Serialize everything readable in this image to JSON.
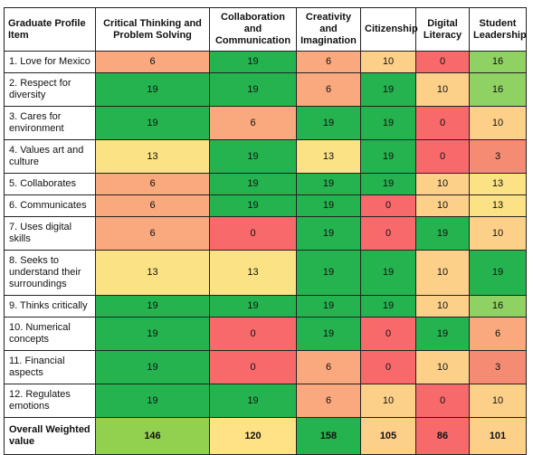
{
  "table": {
    "header": [
      "Graduate Profile Item",
      "Critical Thinking and Problem Solving",
      "Collaboration and Communication",
      "Creativity and Imagination",
      "Citizenship",
      "Digital Literacy",
      "Student Leadership"
    ],
    "rows": [
      {
        "item": "1. Love for Mexico",
        "values": [
          "6",
          "19",
          "6",
          "10",
          "0",
          "16"
        ],
        "colors": [
          "#f9a97d",
          "#25b34f",
          "#f9a97d",
          "#fdd08a",
          "#f8696b",
          "#8fd163"
        ]
      },
      {
        "item": "2. Respect for diversity",
        "values": [
          "19",
          "19",
          "6",
          "19",
          "10",
          "16"
        ],
        "colors": [
          "#25b34f",
          "#25b34f",
          "#f9a97d",
          "#25b34f",
          "#fdd08a",
          "#8fd163"
        ]
      },
      {
        "item": "3. Cares for environment",
        "values": [
          "19",
          "6",
          "19",
          "19",
          "0",
          "10"
        ],
        "colors": [
          "#25b34f",
          "#f9a97d",
          "#25b34f",
          "#25b34f",
          "#f8696b",
          "#fdd08a"
        ]
      },
      {
        "item": "4. Values art and culture",
        "values": [
          "13",
          "19",
          "13",
          "19",
          "0",
          "3"
        ],
        "colors": [
          "#fbe284",
          "#25b34f",
          "#fbe284",
          "#25b34f",
          "#f8696b",
          "#f58b73"
        ]
      },
      {
        "item": "5. Collaborates",
        "values": [
          "6",
          "19",
          "19",
          "19",
          "10",
          "13"
        ],
        "colors": [
          "#f9a97d",
          "#25b34f",
          "#25b34f",
          "#25b34f",
          "#fdd08a",
          "#fbe284"
        ]
      },
      {
        "item": "6. Communicates",
        "values": [
          "6",
          "19",
          "19",
          "0",
          "10",
          "13"
        ],
        "colors": [
          "#f9a97d",
          "#25b34f",
          "#25b34f",
          "#f8696b",
          "#fdd08a",
          "#fbe284"
        ]
      },
      {
        "item": "7. Uses digital skills",
        "values": [
          "6",
          "0",
          "19",
          "0",
          "19",
          "10"
        ],
        "colors": [
          "#f9a97d",
          "#f8696b",
          "#25b34f",
          "#f8696b",
          "#25b34f",
          "#fdd08a"
        ]
      },
      {
        "item": "8. Seeks to understand their surroundings",
        "values": [
          "13",
          "13",
          "19",
          "19",
          "10",
          "19"
        ],
        "colors": [
          "#fbe284",
          "#fbe284",
          "#25b34f",
          "#25b34f",
          "#fdd08a",
          "#25b34f"
        ]
      },
      {
        "item": "9. Thinks critically",
        "values": [
          "19",
          "19",
          "19",
          "19",
          "10",
          "16"
        ],
        "colors": [
          "#25b34f",
          "#25b34f",
          "#25b34f",
          "#25b34f",
          "#fdd08a",
          "#8fd163"
        ]
      },
      {
        "item": "10. Numerical concepts",
        "values": [
          "19",
          "0",
          "19",
          "0",
          "19",
          "6"
        ],
        "colors": [
          "#25b34f",
          "#f8696b",
          "#25b34f",
          "#f8696b",
          "#25b34f",
          "#f9a97d"
        ]
      },
      {
        "item": "11. Financial aspects",
        "values": [
          "19",
          "0",
          "6",
          "0",
          "10",
          "3"
        ],
        "colors": [
          "#25b34f",
          "#f8696b",
          "#f9a97d",
          "#f8696b",
          "#fdd08a",
          "#f58b73"
        ]
      },
      {
        "item": "12. Regulates emotions",
        "values": [
          "19",
          "19",
          "6",
          "10",
          "0",
          "10"
        ],
        "colors": [
          "#25b34f",
          "#25b34f",
          "#f9a97d",
          "#fdd08a",
          "#f8696b",
          "#fdd08a"
        ]
      }
    ],
    "total": {
      "item": "Overall Weighted value",
      "values": [
        "146",
        "120",
        "158",
        "105",
        "86",
        "101"
      ],
      "colors": [
        "#92d050",
        "#ffe285",
        "#25b34f",
        "#fdd08a",
        "#f8696b",
        "#fdd08a"
      ]
    }
  }
}
